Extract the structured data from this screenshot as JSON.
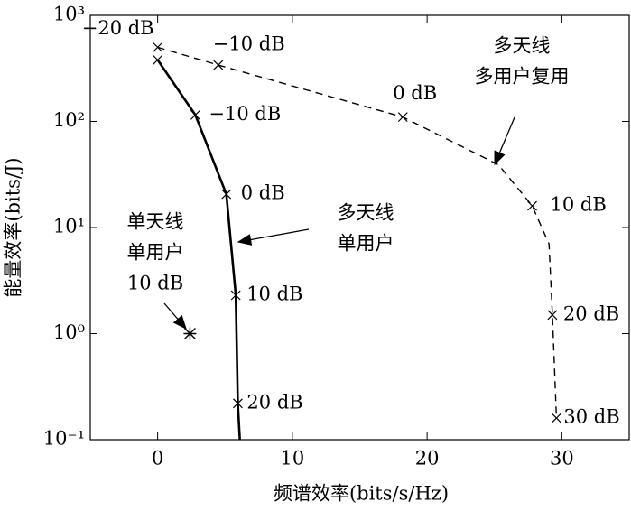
{
  "chart_data": {
    "type": "line",
    "xlabel": "频谱效率(bits/s/Hz)",
    "ylabel": "能量效率(bits/J)",
    "xlim": [
      -5,
      35
    ],
    "xticks": [
      0,
      10,
      20,
      30
    ],
    "ylim": [
      0.1,
      1000
    ],
    "yscale": "log",
    "yticks": [
      {
        "value": 0.1,
        "label": "10⁻¹"
      },
      {
        "value": 1,
        "label": "10⁰"
      },
      {
        "value": 10,
        "label": "10¹"
      },
      {
        "value": 100,
        "label": "10²"
      },
      {
        "value": 1000,
        "label": "10³"
      }
    ],
    "series": [
      {
        "color": "#000000",
        "style": "solid",
        "marker": "x",
        "x": [
          0,
          2.8,
          5.1,
          5.8,
          5.95,
          6.1
        ],
        "y": [
          380,
          115,
          20.6,
          2.3,
          0.22,
          0.1
        ],
        "point_labels": [
          null,
          "−10 dB",
          "0 dB",
          "10 dB",
          "20 dB",
          null
        ],
        "marked": [
          true,
          true,
          true,
          true,
          true,
          false
        ]
      },
      {
        "color": "#000000",
        "style": "dashed",
        "marker": "x",
        "x": [
          0,
          4.5,
          18.2,
          25.3,
          27.8,
          29.05,
          29.3,
          29.6
        ],
        "y": [
          500,
          340,
          110,
          39,
          16,
          7,
          1.5,
          0.16
        ],
        "point_labels": [
          "−20 dB",
          "−10 dB",
          "0 dB",
          null,
          "10 dB",
          null,
          "20 dB",
          "30 dB"
        ],
        "marked": [
          true,
          true,
          true,
          false,
          true,
          false,
          true,
          true
        ]
      },
      {
        "color": "#000000",
        "style": "none",
        "marker": "*",
        "x": [
          2.4
        ],
        "y": [
          1.0
        ]
      }
    ],
    "annotations": [
      {
        "lines": [
          "多天线",
          "多用户复用"
        ]
      },
      {
        "lines": [
          "多天线",
          "单用户"
        ]
      },
      {
        "lines": [
          "单天线",
          "单用户",
          "10 dB"
        ]
      }
    ]
  }
}
